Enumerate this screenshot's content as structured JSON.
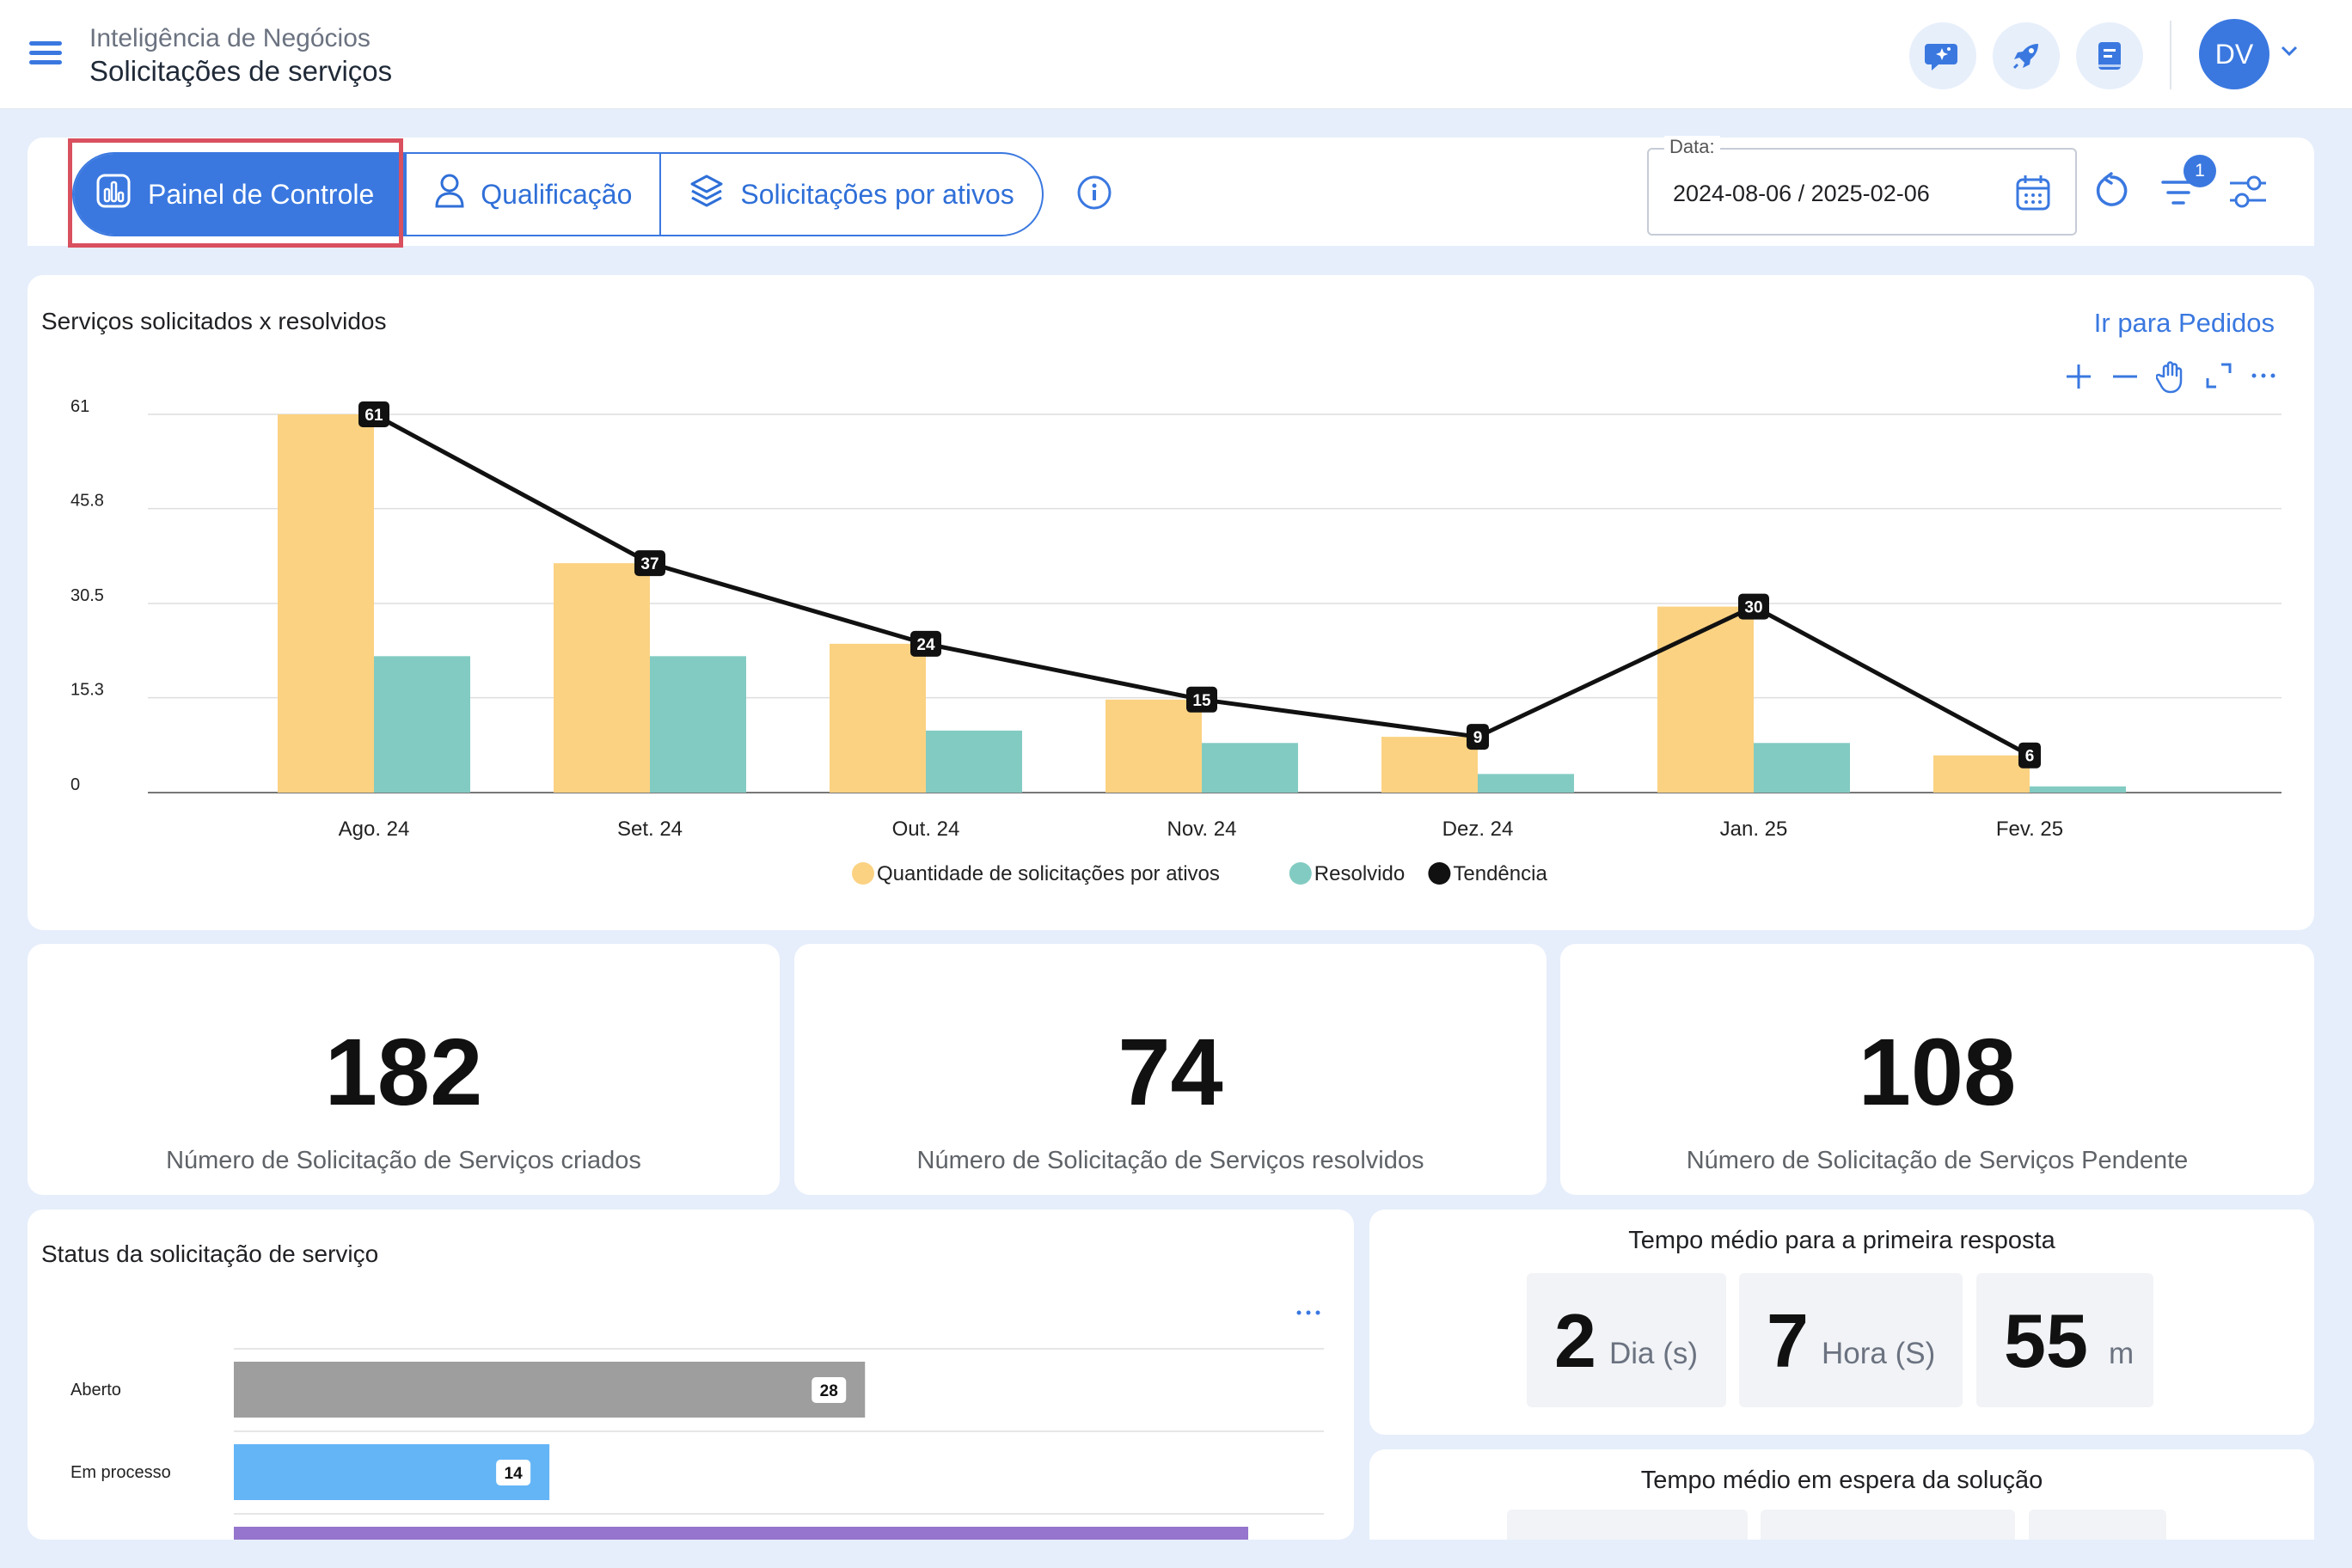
{
  "header": {
    "breadcrumb": "Inteligência de Negócios",
    "title": "Solicitações de serviços",
    "avatar_initials": "DV"
  },
  "tabs": [
    {
      "label": "Painel de Controle",
      "icon": "chart-icon",
      "active": true
    },
    {
      "label": "Qualificação",
      "icon": "user-icon",
      "active": false
    },
    {
      "label": "Solicitações por ativos",
      "icon": "layers-icon",
      "active": false
    }
  ],
  "date_filter": {
    "label": "Data:",
    "value": "2024-08-06 / 2025-02-06"
  },
  "filter_badge": "1",
  "main_chart": {
    "title": "Serviços solicitados x resolvidos",
    "link": "Ir para Pedidos"
  },
  "chart_data": [
    {
      "type": "bar",
      "title": "Serviços solicitados x resolvidos",
      "categories": [
        "Ago. 24",
        "Set. 24",
        "Out. 24",
        "Nov. 24",
        "Dez. 24",
        "Jan. 25",
        "Fev. 25"
      ],
      "y_ticks": [
        "0",
        "15.3",
        "30.5",
        "45.8",
        "61"
      ],
      "ylim": [
        0,
        61
      ],
      "grid": true,
      "legend_position": "bottom",
      "series": [
        {
          "name": "Quantidade de solicitações por ativos",
          "type": "bar",
          "color": "#fbd282",
          "values": [
            61,
            37,
            24,
            15,
            9,
            30,
            6
          ]
        },
        {
          "name": "Resolvido",
          "type": "bar",
          "color": "#82cbc2",
          "values": [
            22,
            22,
            10,
            8,
            3,
            8,
            1
          ]
        },
        {
          "name": "Tendência",
          "type": "line",
          "color": "#111111",
          "values": [
            61,
            37,
            24,
            15,
            9,
            30,
            6
          ]
        }
      ]
    },
    {
      "type": "bar",
      "orientation": "horizontal",
      "title": "Status da solicitação de serviço",
      "categories": [
        "Aberto",
        "Em processo",
        ""
      ],
      "series": [
        {
          "values": [
            28,
            14,
            45
          ],
          "colors": [
            "#9e9e9e",
            "#64b5f6",
            "#9575cd"
          ]
        }
      ]
    }
  ],
  "kpis": [
    {
      "value": "182",
      "label": "Número de Solicitação de Serviços criados"
    },
    {
      "value": "74",
      "label": "Número de Solicitação de Serviços resolvidos"
    },
    {
      "value": "108",
      "label": "Número de Solicitação de Serviços Pendente"
    }
  ],
  "status_chart": {
    "title": "Status da solicitação de serviço",
    "rows": [
      {
        "label": "Aberto",
        "value": "28"
      },
      {
        "label": "Em processo",
        "value": "14"
      }
    ]
  },
  "first_response": {
    "title": "Tempo médio para a primeira resposta",
    "days": "2",
    "days_unit": "Dia (s)",
    "hours": "7",
    "hours_unit": "Hora (S)",
    "minutes": "55",
    "minutes_unit": "m"
  },
  "solution_wait": {
    "title": "Tempo médio em espera da solução"
  }
}
